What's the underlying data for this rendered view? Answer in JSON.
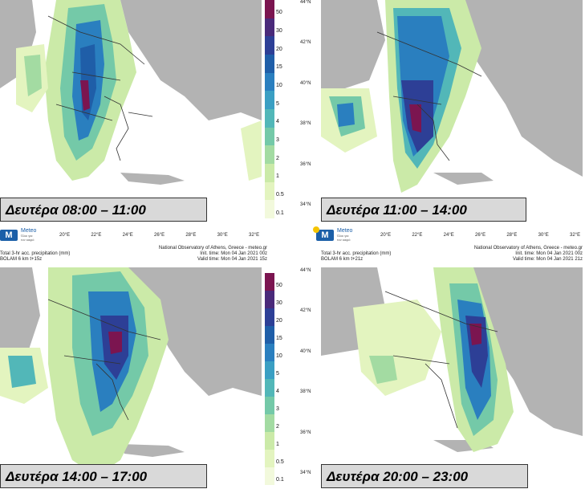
{
  "panels": [
    {
      "label": "Δευτέρα 08:00 – 11:00"
    },
    {
      "label": "Δευτέρα 11:00 – 14:00"
    },
    {
      "label": "Δευτέρα 14:00 – 17:00"
    },
    {
      "label": "Δευτέρα 20:00 – 23:00"
    }
  ],
  "colorbar": {
    "levels": [
      "50",
      "30",
      "20",
      "15",
      "10",
      "5",
      "4",
      "3",
      "2",
      "1",
      "0.5",
      "0.1"
    ],
    "colors": [
      "#7b1550",
      "#4a2a7a",
      "#2d3f96",
      "#1f5ea8",
      "#2a7fbf",
      "#3a9fc3",
      "#52b7b8",
      "#74c9a8",
      "#a3dba2",
      "#cbeaa8",
      "#e3f4bf",
      "#f2f9dc"
    ]
  },
  "latitudes": [
    "44°N",
    "42°N",
    "40°N",
    "38°N",
    "36°N",
    "34°N"
  ],
  "longitudes": [
    "20°E",
    "22°E",
    "24°E",
    "26°E",
    "28°E",
    "30°E",
    "32°E"
  ],
  "logo": {
    "name": "Meteo",
    "sub1": "Όλοι για",
    "sub2": "τον καιρό"
  },
  "footers": [
    {
      "l1": "Total 3-hr acc. precipitation (mm)",
      "l2": "BOLAM 6 km t+15z",
      "r0": "National Observatory of Athens, Greece - meteo.gr",
      "r1": "Init. time: Mon 04 Jan 2021 00z",
      "r2": "Valid time: Mon 04 Jan 2021 15z"
    },
    {
      "l1": "Total 3-hr acc. precipitation (mm)",
      "l2": "BOLAM 6 km t+21z",
      "r0": "National Observatory of Athens, Greece - meteo.gr",
      "r1": "Init. time: Mon 04 Jan 2021 00z",
      "r2": "Valid time: Mon 04 Jan 2021 21z"
    }
  ],
  "colors": {
    "sea": "#ffffff",
    "land": "#b3b3b3",
    "border": "#333333",
    "labelbg": "#d9d9d9"
  }
}
